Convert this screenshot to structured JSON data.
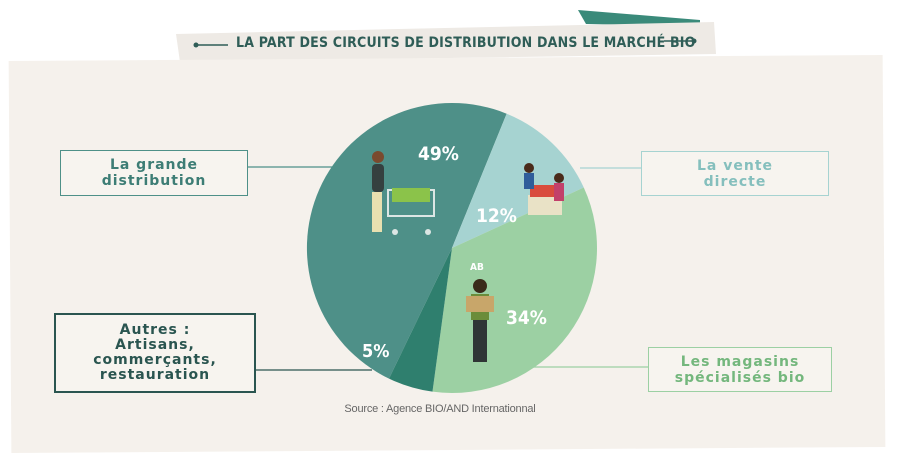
{
  "chart_data": {
    "type": "pie",
    "title": "LA PART DES CIRCUITS DE DISTRIBUTION DANS LE MARCHÉ BIO",
    "categories": [
      "La grande distribution",
      "La vente directe",
      "Les magasins spécialisés bio",
      "Autres : Artisans, commerçants, restauration"
    ],
    "values": [
      49,
      12,
      34,
      5
    ],
    "value_labels": [
      "49%",
      "12%",
      "34%",
      "5%"
    ],
    "slice_colors": [
      "#4e9088",
      "#a6d3d1",
      "#9cd0a3",
      "#2f7f6e"
    ],
    "legend_placement": "callout-boxes",
    "source": "Source : Agence BIO/AND Internationnal"
  },
  "labels": {
    "grande": [
      "La grande",
      "distribution"
    ],
    "vente": [
      "La vente",
      "directe"
    ],
    "magasins": [
      "Les magasins",
      "spécialisés bio"
    ],
    "autres": [
      "Autres :",
      "Artisans,",
      "commerçants,",
      "restauration"
    ]
  },
  "icons": {
    "ab_badge": "AB"
  },
  "colors": {
    "banner_teal": "#3a8a7a",
    "banner_orange": "#e06a3e",
    "card_bg": "#f5f1ec",
    "text_teal": "#2f5d57",
    "autres_border": "#2a5550"
  }
}
